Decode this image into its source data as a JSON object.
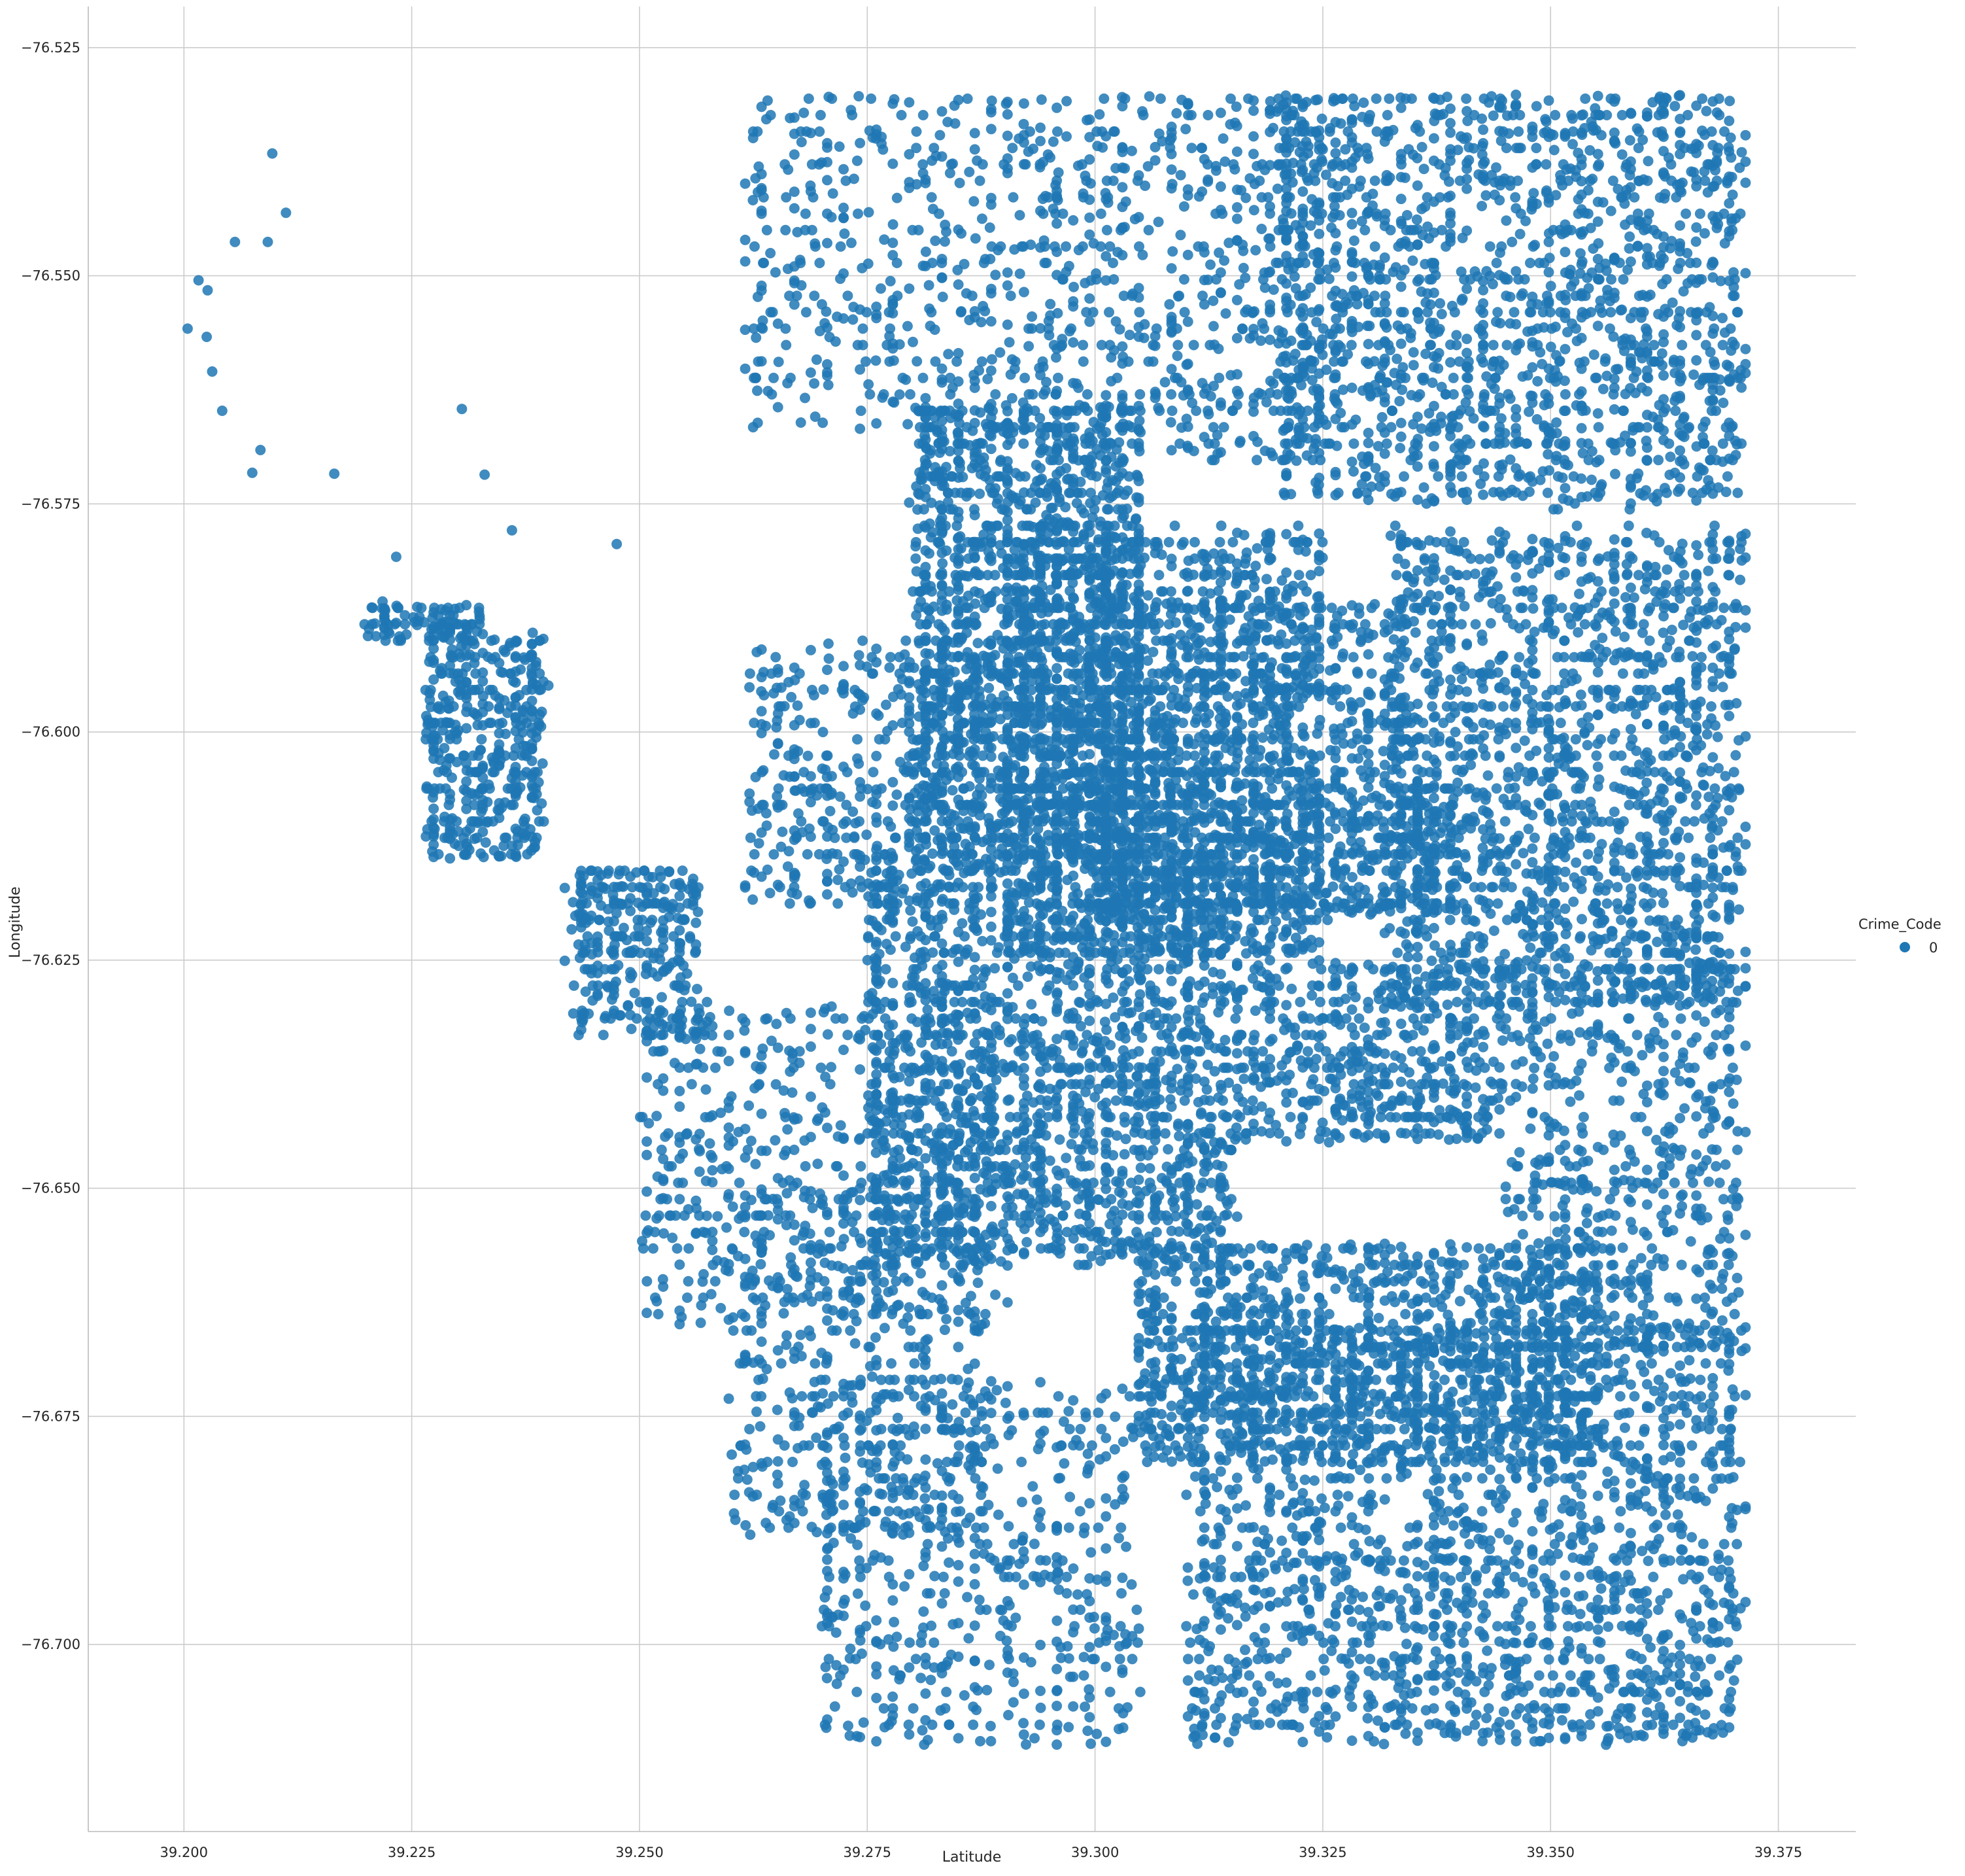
{
  "chart_data": {
    "type": "scatter",
    "title": "",
    "xlabel": "Latitude",
    "ylabel": "Longitude",
    "xlim": [
      39.1895,
      39.3835
    ],
    "ylim": [
      -76.7205,
      -76.5205
    ],
    "y_inverted": true,
    "xticks": [
      39.2,
      39.225,
      39.25,
      39.275,
      39.3,
      39.325,
      39.35,
      39.375
    ],
    "xtick_labels": [
      "39.200",
      "39.225",
      "39.250",
      "39.275",
      "39.300",
      "39.325",
      "39.350",
      "39.375"
    ],
    "yticks": [
      -76.525,
      -76.55,
      -76.575,
      -76.6,
      -76.625,
      -76.65,
      -76.675,
      -76.7
    ],
    "ytick_labels": [
      "−76.525",
      "−76.550",
      "−76.575",
      "−76.600",
      "−76.625",
      "−76.650",
      "−76.675",
      "−76.700"
    ],
    "grid": true,
    "legend": {
      "title": "Crime_Code",
      "placement": "right",
      "entries": [
        {
          "label": "0",
          "color": "#1f77b4"
        }
      ]
    },
    "series": [
      {
        "name": "0",
        "color": "#1f77b4",
        "sample_points": [
          [
            39.2004,
            -76.5558
          ],
          [
            39.2016,
            -76.5505
          ],
          [
            39.2026,
            -76.5516
          ],
          [
            39.2025,
            -76.5567
          ],
          [
            39.2031,
            -76.5605
          ],
          [
            39.2042,
            -76.5648
          ],
          [
            39.2056,
            -76.5463
          ],
          [
            39.2075,
            -76.5716
          ],
          [
            39.2084,
            -76.5691
          ],
          [
            39.2092,
            -76.5463
          ],
          [
            39.2097,
            -76.5366
          ],
          [
            39.2112,
            -76.5431
          ],
          [
            39.2165,
            -76.5717
          ],
          [
            39.2218,
            -76.5857
          ],
          [
            39.2233,
            -76.5808
          ],
          [
            39.2305,
            -76.5646
          ],
          [
            39.233,
            -76.5718
          ],
          [
            39.236,
            -76.5779
          ],
          [
            39.2475,
            -76.5794
          ]
        ],
        "clusters": [
          {
            "x": [
              39.2195,
              39.2325
            ],
            "y": [
              -76.59,
              -76.586
            ],
            "n": 90
          },
          {
            "x": [
              39.2265,
              39.2395
            ],
            "y": [
              -76.614,
              -76.589
            ],
            "n": 420
          },
          {
            "x": [
              39.2425,
              39.2565
            ],
            "y": [
              -76.633,
              -76.615
            ],
            "n": 300
          },
          {
            "x": [
              39.25,
              39.29
            ],
            "y": [
              -76.665,
              -76.63
            ],
            "n": 520
          },
          {
            "x": [
              39.26,
              39.288
            ],
            "y": [
              -76.688,
              -76.65
            ],
            "n": 480
          },
          {
            "x": [
              39.262,
              39.288
            ],
            "y": [
              -76.619,
              -76.59
            ],
            "n": 420
          },
          {
            "x": [
              39.262,
              39.295
            ],
            "y": [
              -76.567,
              -76.53
            ],
            "n": 420
          },
          {
            "x": [
              39.27,
              39.305
            ],
            "y": [
              -76.711,
              -76.671
            ],
            "n": 520
          },
          {
            "x": [
              39.28,
              39.305
            ],
            "y": [
              -76.615,
              -76.564
            ],
            "n": 1700
          },
          {
            "x": [
              39.275,
              39.315
            ],
            "y": [
              -76.658,
              -76.615
            ],
            "n": 1700
          },
          {
            "x": [
              39.29,
              39.325
            ],
            "y": [
              -76.625,
              -76.578
            ],
            "n": 1400
          },
          {
            "x": [
              39.295,
              39.325
            ],
            "y": [
              -76.57,
              -76.53
            ],
            "n": 520
          },
          {
            "x": [
              39.3,
              39.335
            ],
            "y": [
              -76.605,
              -76.585
            ],
            "n": 500
          },
          {
            "x": [
              39.3,
              39.34
            ],
            "y": [
              -76.62,
              -76.605
            ],
            "n": 700
          },
          {
            "x": [
              39.315,
              39.345
            ],
            "y": [
              -76.645,
              -76.625
            ],
            "n": 520
          },
          {
            "x": [
              39.32,
              39.371
            ],
            "y": [
              -76.575,
              -76.53
            ],
            "n": 1600
          },
          {
            "x": [
              39.332,
              39.371
            ],
            "y": [
              -76.63,
              -76.578
            ],
            "n": 1600
          },
          {
            "x": [
              39.345,
              39.371
            ],
            "y": [
              -76.668,
              -76.625
            ],
            "n": 600
          },
          {
            "x": [
              39.305,
              39.355
            ],
            "y": [
              -76.68,
              -76.656
            ],
            "n": 1200
          },
          {
            "x": [
              39.31,
              39.371
            ],
            "y": [
              -76.711,
              -76.665
            ],
            "n": 1800
          }
        ]
      }
    ]
  }
}
